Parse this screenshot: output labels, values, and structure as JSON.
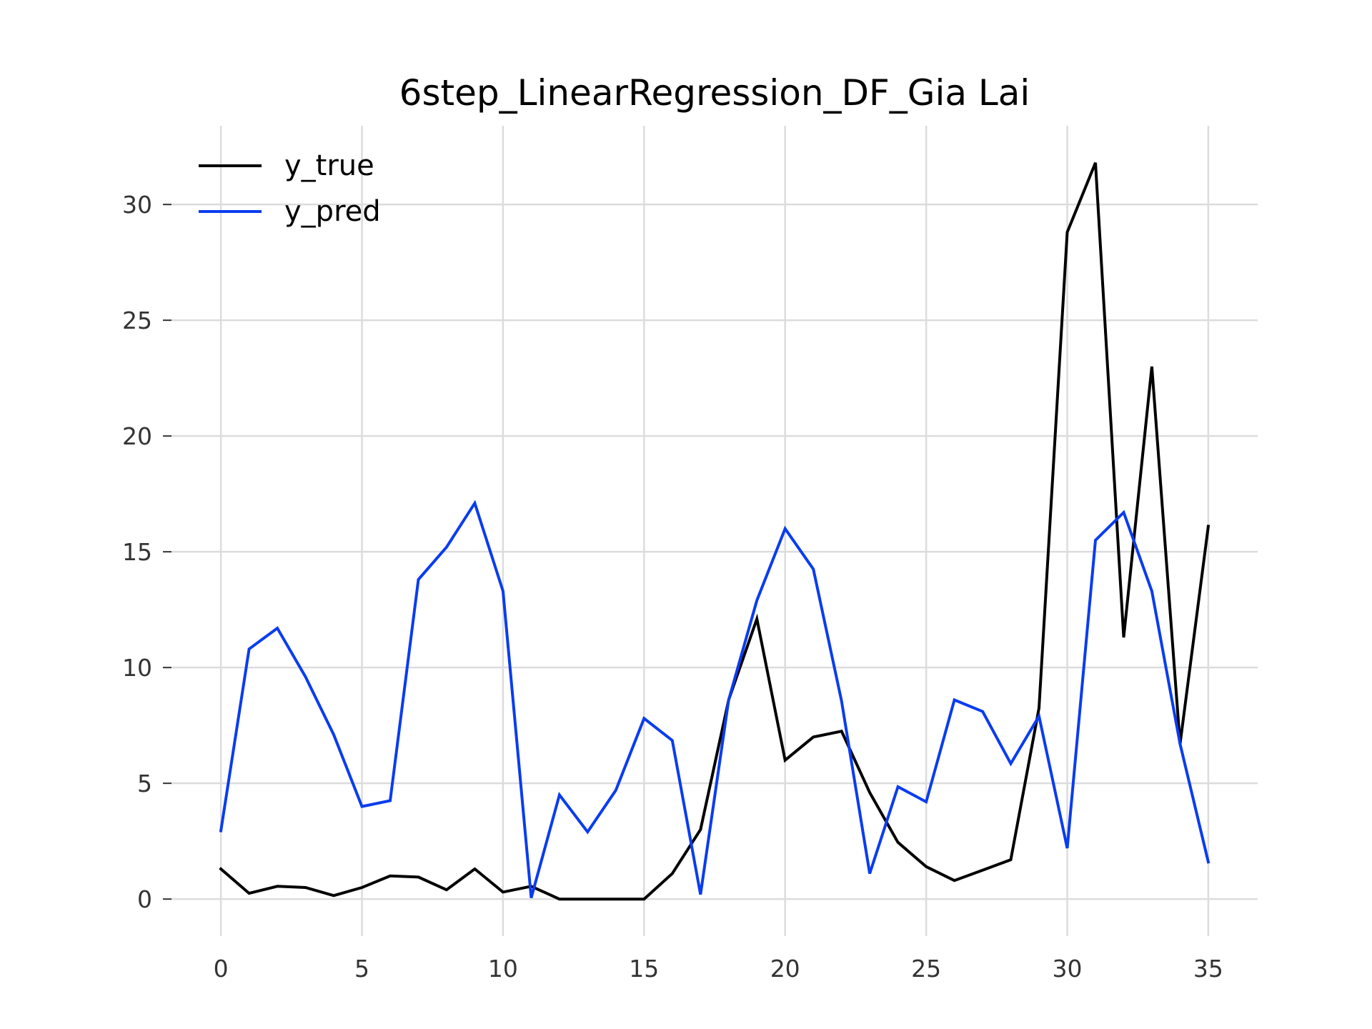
{
  "chart_data": {
    "type": "line",
    "title": "6step_LinearRegression_DF_Gia Lai",
    "xlabel": "",
    "ylabel": "",
    "x": [
      0,
      1,
      2,
      3,
      4,
      5,
      6,
      7,
      8,
      9,
      10,
      11,
      12,
      13,
      14,
      15,
      16,
      17,
      18,
      19,
      20,
      21,
      22,
      23,
      24,
      25,
      26,
      27,
      28,
      29,
      30,
      31,
      32,
      33,
      34,
      35
    ],
    "xlim": [
      -1.75,
      36.75
    ],
    "ylim": [
      -1.6,
      33.4
    ],
    "xticks": [
      0,
      5,
      10,
      15,
      20,
      25,
      30,
      35
    ],
    "yticks": [
      0,
      5,
      10,
      15,
      20,
      25,
      30
    ],
    "grid": true,
    "legend_position": "top-left",
    "series": [
      {
        "name": "y_true",
        "color": "#000000",
        "values": [
          1.3,
          0.25,
          0.55,
          0.5,
          0.15,
          0.5,
          1.0,
          0.95,
          0.4,
          1.3,
          0.3,
          0.55,
          0.0,
          0.0,
          0.0,
          0.0,
          1.1,
          3.0,
          8.6,
          12.1,
          6.0,
          7.0,
          7.25,
          4.6,
          2.45,
          1.4,
          0.8,
          1.25,
          1.7,
          8.25,
          28.8,
          31.8,
          11.3,
          23.0,
          6.7,
          16.1
        ]
      },
      {
        "name": "y_pred",
        "color": "#0a3cf0",
        "values": [
          2.95,
          10.8,
          11.7,
          9.6,
          7.1,
          4.0,
          4.25,
          13.8,
          15.2,
          17.1,
          13.3,
          0.05,
          4.5,
          2.9,
          4.7,
          7.8,
          6.85,
          0.2,
          8.6,
          12.9,
          16.0,
          14.25,
          8.55,
          1.1,
          4.85,
          4.2,
          8.6,
          8.1,
          5.85,
          7.9,
          2.2,
          15.5,
          16.7,
          13.3,
          6.7,
          1.6
        ]
      }
    ]
  }
}
